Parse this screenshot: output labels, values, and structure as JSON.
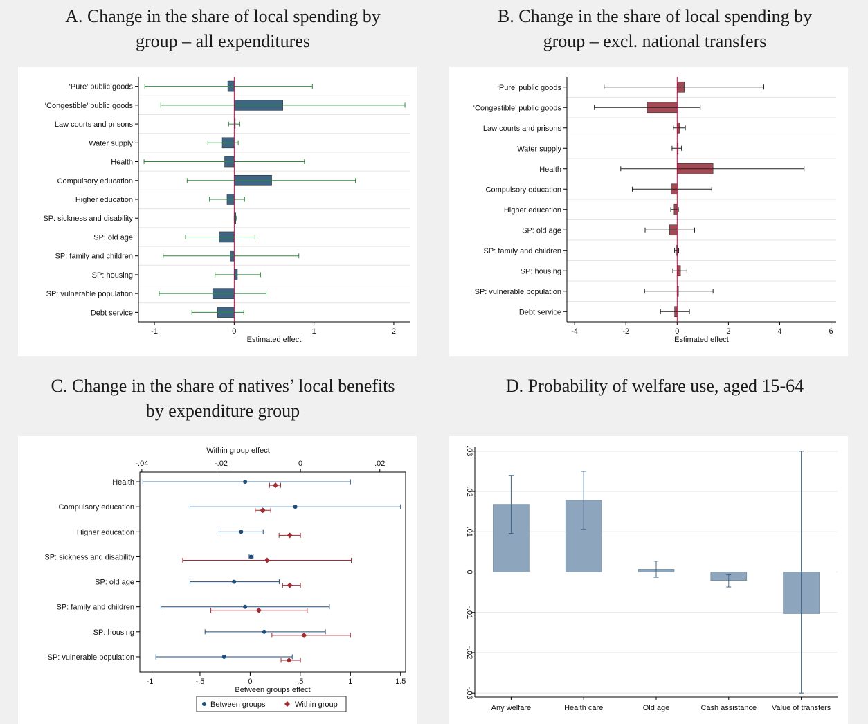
{
  "titles": {
    "a": "A. Change in the share of local spending by\ngroup – all expenditures",
    "b": "B. Change in the share of local spending by\ngroup – excl. national transfers",
    "c": "C. Change in the share of natives’ local benefits\nby expenditure group",
    "d": "D. Probability of welfare use, aged 15-64"
  },
  "colors": {
    "blue_bar": "#3f6585",
    "green_ci": "#2e8b3e",
    "red_bar": "#a34a54",
    "black_ci": "#222222",
    "between": "#1f4e79",
    "within": "#a12b30",
    "zero_line": "#d6004c",
    "gray_bar": "#8ea6bd",
    "grid": "#e5e5e5"
  },
  "chart_data": [
    {
      "id": "A",
      "type": "bar",
      "orientation": "horizontal",
      "xlabel": "Estimated effect",
      "xlim": [
        -1.2,
        2.2
      ],
      "xticks": [
        -1,
        0,
        1,
        2
      ],
      "xtick_labels": [
        "-1",
        "0",
        "1",
        "2"
      ],
      "categories": [
        "‘Pure’ public goods",
        "‘Congestible’ public goods",
        "Law courts and prisons",
        "Water supply",
        "Health",
        "Compulsory education",
        "Higher education",
        "SP: sickness and disability",
        "SP: old age",
        "SP: family and children",
        "SP: housing",
        "SP: vulnerable population",
        "Debt service"
      ],
      "values": [
        -0.08,
        0.61,
        0.0,
        -0.15,
        -0.12,
        0.47,
        -0.09,
        0.02,
        -0.19,
        -0.05,
        0.04,
        -0.27,
        -0.21
      ],
      "ci_low": [
        -1.12,
        -0.92,
        -0.07,
        -0.33,
        -1.13,
        -0.59,
        -0.31,
        0.0,
        -0.61,
        -0.89,
        -0.24,
        -0.94,
        -0.53
      ],
      "ci_high": [
        0.98,
        2.14,
        0.07,
        0.05,
        0.88,
        1.52,
        0.13,
        0.03,
        0.26,
        0.81,
        0.33,
        0.4,
        0.12
      ]
    },
    {
      "id": "B",
      "type": "bar",
      "orientation": "horizontal",
      "xlabel": "Estimated effect",
      "xlim": [
        -4.3,
        6.2
      ],
      "xticks": [
        -4,
        -2,
        0,
        2,
        4,
        6
      ],
      "xtick_labels": [
        "-4",
        "-2",
        "0",
        "2",
        "4",
        "6"
      ],
      "categories": [
        "‘Pure’ public goods",
        "‘Congestible’ public goods",
        "Law courts and prisons",
        "Water supply",
        "Health",
        "Compulsory education",
        "Higher education",
        "SP: old age",
        "SP: family and children",
        "SP: housing",
        "SP: vulnerable population",
        "Debt service"
      ],
      "values": [
        0.28,
        -1.17,
        0.1,
        0.02,
        1.4,
        -0.23,
        -0.12,
        -0.3,
        -0.02,
        0.13,
        0.05,
        -0.1
      ],
      "ci_low": [
        -2.85,
        -3.23,
        -0.15,
        -0.2,
        -2.2,
        -1.75,
        -0.25,
        -1.25,
        -0.1,
        -0.17,
        -1.27,
        -0.65
      ],
      "ci_high": [
        3.38,
        0.9,
        0.32,
        0.17,
        4.95,
        1.35,
        0.05,
        0.68,
        0.06,
        0.38,
        1.4,
        0.48
      ]
    },
    {
      "id": "C",
      "type": "scatter",
      "orientation": "horizontal",
      "xlabel": "Between groups effect",
      "top_axis_label": "Within group effect",
      "xlim": [
        -1.1,
        1.55
      ],
      "xticks": [
        -1,
        -0.5,
        0,
        0.5,
        1,
        1.5
      ],
      "xtick_labels": [
        "-1",
        "-.5",
        "0",
        ".5",
        "1",
        "1.5"
      ],
      "top_xlim": [
        -0.0405,
        0.0265
      ],
      "top_xticks": [
        -0.04,
        -0.02,
        0,
        0.02
      ],
      "top_xtick_labels": [
        "-.04",
        "-.02",
        "0",
        ".02"
      ],
      "categories": [
        "Health",
        "Compulsory education",
        "Higher education",
        "SP: sickness and disability",
        "SP: old age",
        "SP: family and children",
        "SP: housing",
        "SP: vulnerable population"
      ],
      "series": [
        {
          "name": "Between groups",
          "values": [
            -0.05,
            0.45,
            -0.09,
            0.01,
            -0.16,
            -0.05,
            0.14,
            -0.26
          ],
          "ci_low": [
            -1.07,
            -0.6,
            -0.31,
            -0.01,
            -0.6,
            -0.89,
            -0.45,
            -0.94
          ],
          "ci_high": [
            1.0,
            1.5,
            0.13,
            0.03,
            0.29,
            0.79,
            0.75,
            0.42
          ]
        },
        {
          "name": "Within group",
          "values": [
            -0.0063,
            -0.0095,
            -0.0027,
            -0.0084,
            -0.0027,
            -0.0105,
            0.0009,
            -0.0029
          ],
          "ci_low": [
            -0.0078,
            -0.0114,
            -0.0054,
            -0.0297,
            -0.0045,
            -0.0226,
            -0.0072,
            -0.0049
          ],
          "ci_high": [
            -0.005,
            -0.0075,
            0.0,
            0.0128,
            0.0,
            0.0017,
            0.0126,
            0.0
          ],
          "scale": "top"
        }
      ],
      "legend": [
        "Between groups",
        "Within group"
      ],
      "legend_position": "bottom"
    },
    {
      "id": "D",
      "type": "bar",
      "categories": [
        "Any welfare",
        "Health care",
        "Old age",
        "Cash assistance",
        "Value of transfers"
      ],
      "values": [
        0.0168,
        0.0178,
        0.0007,
        -0.0021,
        -0.0103
      ],
      "ci_low": [
        0.0096,
        0.0106,
        -0.0013,
        -0.0037,
        -0.03
      ],
      "ci_high": [
        0.024,
        0.025,
        0.0027,
        -0.0007,
        0.03
      ],
      "ylim": [
        -0.031,
        0.031
      ],
      "yticks": [
        -0.03,
        -0.02,
        -0.01,
        0,
        0.01,
        0.02,
        0.03
      ],
      "ytick_labels": [
        "-.03",
        "-.02",
        "-.01",
        "0",
        ".01",
        ".02",
        ".03"
      ],
      "grid": true
    }
  ]
}
